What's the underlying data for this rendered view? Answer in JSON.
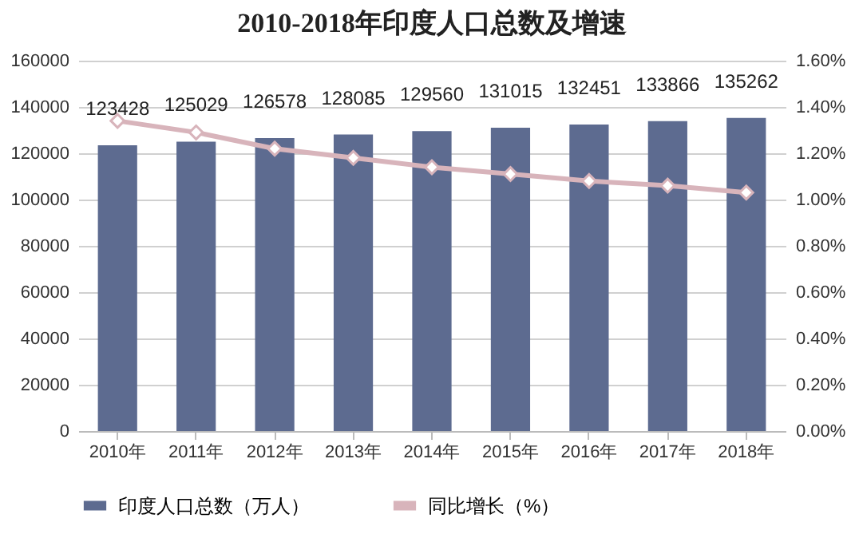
{
  "chart_data": {
    "type": "bar",
    "title": "2010-2018年印度人口总数及增速",
    "categories": [
      "2010年",
      "2011年",
      "2012年",
      "2013年",
      "2014年",
      "2015年",
      "2016年",
      "2017年",
      "2018年"
    ],
    "series": [
      {
        "name": "印度人口总数（万人）",
        "color": "#5d6b90",
        "values": [
          123428,
          125029,
          126578,
          128085,
          129560,
          131015,
          132451,
          133866,
          135262
        ],
        "value_labels": [
          "123428",
          "125029",
          "126578",
          "128085",
          "129560",
          "131015",
          "132451",
          "133866",
          "135262"
        ]
      },
      {
        "name": "同比增长（%）",
        "type": "line",
        "axis": "y2",
        "color": "#d8b4bb",
        "marker": "diamond",
        "line_style": "solid",
        "values": [
          1.34,
          1.29,
          1.22,
          1.18,
          1.14,
          1.11,
          1.08,
          1.06,
          1.03
        ]
      }
    ],
    "ylim": [
      0,
      160000
    ],
    "yticks": [
      0,
      20000,
      40000,
      60000,
      80000,
      100000,
      120000,
      140000,
      160000
    ],
    "y2lim": [
      0,
      1.6
    ],
    "y2ticks": [
      {
        "value": 0,
        "label": "0.00%"
      },
      {
        "value": 0.2,
        "label": "0.20%"
      },
      {
        "value": 0.4,
        "label": "0.40%"
      },
      {
        "value": 0.6,
        "label": "0.60%"
      },
      {
        "value": 0.8,
        "label": "0.80%"
      },
      {
        "value": 1.0,
        "label": "1.00%"
      },
      {
        "value": 1.2,
        "label": "1.20%"
      },
      {
        "value": 1.4,
        "label": "1.40%"
      },
      {
        "value": 1.6,
        "label": "1.60%"
      }
    ],
    "grid": "y",
    "legend": "bottom"
  }
}
